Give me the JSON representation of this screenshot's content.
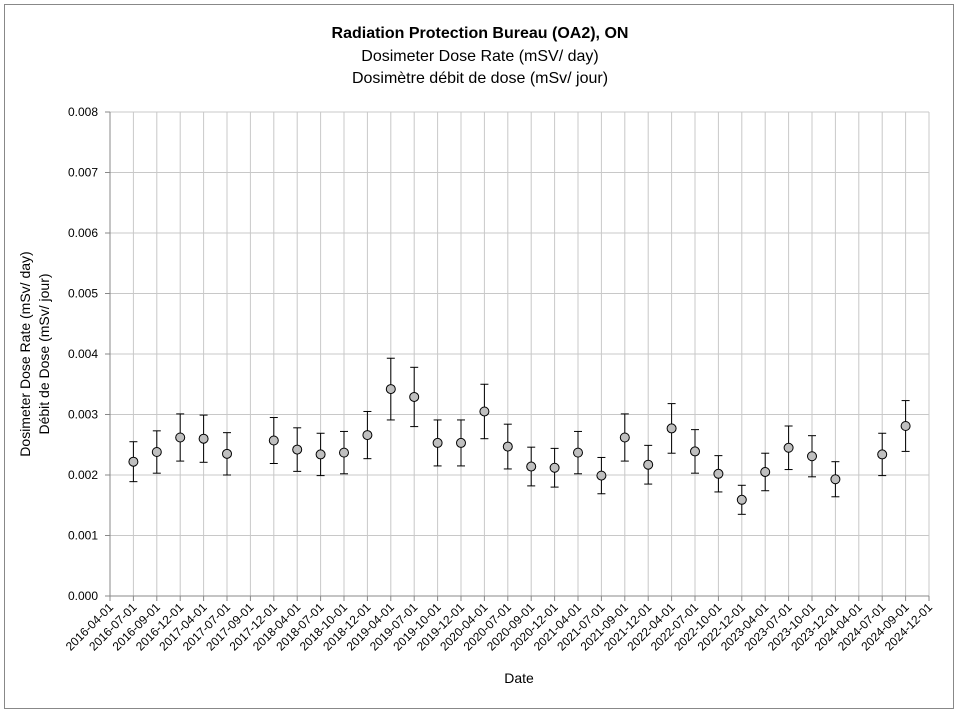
{
  "chart_data": {
    "type": "scatter",
    "title": "Radiation Protection Bureau (OA2), ON",
    "subtitle_en": "Dosimeter Dose Rate (mSV/ day)",
    "subtitle_fr": "Dosimètre débit de dose (mSv/ jour)",
    "xlabel": "Date",
    "ylabel_en": "Dosimeter Dose Rate (mSv/ day)",
    "ylabel_fr": "Débit de Dose (mSv/ jour)",
    "ylim": [
      0,
      0.008
    ],
    "ytick_step": 0.001,
    "ytick_labels": [
      "0.000",
      "0.001",
      "0.002",
      "0.003",
      "0.004",
      "0.005",
      "0.006",
      "0.007",
      "0.008"
    ],
    "grid": true,
    "legend": "none",
    "marker_color": "#bfbfbf",
    "x_categories": [
      "2016-04-01",
      "2016-07-01",
      "2016-09-01",
      "2016-12-01",
      "2017-04-01",
      "2017-07-01",
      "2017-09-01",
      "2017-12-01",
      "2018-04-01",
      "2018-07-01",
      "2018-10-01",
      "2018-12-01",
      "2019-04-01",
      "2019-07-01",
      "2019-10-01",
      "2019-12-01",
      "2020-04-01",
      "2020-07-01",
      "2020-09-01",
      "2020-12-01",
      "2021-04-01",
      "2021-07-01",
      "2021-09-01",
      "2021-12-01",
      "2022-04-01",
      "2022-07-01",
      "2022-10-01",
      "2022-12-01",
      "2023-04-01",
      "2023-07-01",
      "2023-10-01",
      "2023-12-01",
      "2024-04-01",
      "2024-07-01",
      "2024-09-01",
      "2024-12-01"
    ],
    "points": [
      {
        "x": "2016-07-01",
        "y": 0.00222,
        "err": 0.00033
      },
      {
        "x": "2016-09-01",
        "y": 0.00238,
        "err": 0.00035
      },
      {
        "x": "2016-12-01",
        "y": 0.00262,
        "err": 0.00039
      },
      {
        "x": "2017-04-01",
        "y": 0.0026,
        "err": 0.00039
      },
      {
        "x": "2017-07-01",
        "y": 0.00235,
        "err": 0.00035
      },
      {
        "x": "2017-12-01",
        "y": 0.00257,
        "err": 0.00038
      },
      {
        "x": "2018-04-01",
        "y": 0.00242,
        "err": 0.00036
      },
      {
        "x": "2018-07-01",
        "y": 0.00234,
        "err": 0.00035
      },
      {
        "x": "2018-10-01",
        "y": 0.00237,
        "err": 0.00035
      },
      {
        "x": "2018-12-01",
        "y": 0.00266,
        "err": 0.00039
      },
      {
        "x": "2019-04-01",
        "y": 0.00342,
        "err": 0.00051
      },
      {
        "x": "2019-07-01",
        "y": 0.00329,
        "err": 0.00049
      },
      {
        "x": "2019-10-01",
        "y": 0.00253,
        "err": 0.00038
      },
      {
        "x": "2019-12-01",
        "y": 0.00253,
        "err": 0.00038
      },
      {
        "x": "2020-04-01",
        "y": 0.00305,
        "err": 0.00045
      },
      {
        "x": "2020-07-01",
        "y": 0.00247,
        "err": 0.00037
      },
      {
        "x": "2020-09-01",
        "y": 0.00214,
        "err": 0.00032
      },
      {
        "x": "2020-12-01",
        "y": 0.00212,
        "err": 0.00032
      },
      {
        "x": "2021-04-01",
        "y": 0.00237,
        "err": 0.00035
      },
      {
        "x": "2021-07-01",
        "y": 0.00199,
        "err": 0.0003
      },
      {
        "x": "2021-09-01",
        "y": 0.00262,
        "err": 0.00039
      },
      {
        "x": "2021-12-01",
        "y": 0.00217,
        "err": 0.00032
      },
      {
        "x": "2022-04-01",
        "y": 0.00277,
        "err": 0.00041
      },
      {
        "x": "2022-07-01",
        "y": 0.00239,
        "err": 0.00036
      },
      {
        "x": "2022-10-01",
        "y": 0.00202,
        "err": 0.0003
      },
      {
        "x": "2022-12-01",
        "y": 0.00159,
        "err": 0.00024
      },
      {
        "x": "2023-04-01",
        "y": 0.00205,
        "err": 0.00031
      },
      {
        "x": "2023-07-01",
        "y": 0.00245,
        "err": 0.00036
      },
      {
        "x": "2023-10-01",
        "y": 0.00231,
        "err": 0.00034
      },
      {
        "x": "2023-12-01",
        "y": 0.00193,
        "err": 0.00029
      },
      {
        "x": "2024-07-01",
        "y": 0.00234,
        "err": 0.00035
      },
      {
        "x": "2024-09-01",
        "y": 0.00281,
        "err": 0.00042
      }
    ]
  }
}
